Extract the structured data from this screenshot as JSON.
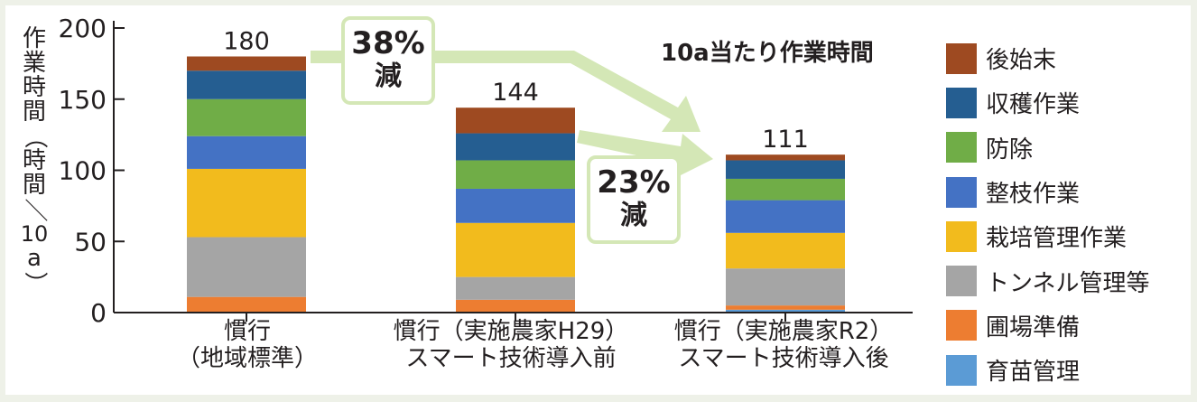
{
  "chart_data": {
    "type": "bar",
    "stacked": true,
    "title": "10a当たり作業時間",
    "ylabel_chars": [
      "作",
      "業",
      "時",
      "間",
      "（",
      "時",
      "間",
      "／",
      "10",
      "a",
      "）"
    ],
    "ylim": [
      0,
      200
    ],
    "yticks": [
      "0",
      "50",
      "100",
      "150",
      "200"
    ],
    "grid": false,
    "legend_position": "right",
    "categories": [
      {
        "line1": "慣行",
        "line2": "（地域標準）"
      },
      {
        "line1": "慣行（実施農家H29）",
        "line2": "スマート技術導入前"
      },
      {
        "line1": "慣行（実施農家R2）",
        "line2": "スマート技術導入後"
      }
    ],
    "totals": [
      "180",
      "144",
      "111"
    ],
    "series": [
      {
        "name": "育苗管理",
        "color": "#5b9bd5",
        "values": [
          0,
          0,
          2
        ]
      },
      {
        "name": "圃場準備",
        "color": "#ed7d31",
        "values": [
          11,
          9,
          3
        ]
      },
      {
        "name": "トンネル管理等",
        "color": "#a5a5a5",
        "values": [
          42,
          16,
          26
        ]
      },
      {
        "name": "栽培管理作業",
        "color": "#f2bb1d",
        "values": [
          48,
          38,
          25
        ]
      },
      {
        "name": "整枝作業",
        "color": "#4472c4",
        "values": [
          23,
          24,
          23
        ]
      },
      {
        "name": "防除",
        "color": "#70ad47",
        "values": [
          26,
          20,
          15
        ]
      },
      {
        "name": "収穫作業",
        "color": "#255e91",
        "values": [
          20,
          19,
          13
        ]
      },
      {
        "name": "後始末",
        "color": "#9e4a21",
        "values": [
          10,
          18,
          4
        ]
      }
    ],
    "annotations": [
      {
        "pct": "38%",
        "word": "減"
      },
      {
        "pct": "23%",
        "word": "減"
      }
    ]
  }
}
